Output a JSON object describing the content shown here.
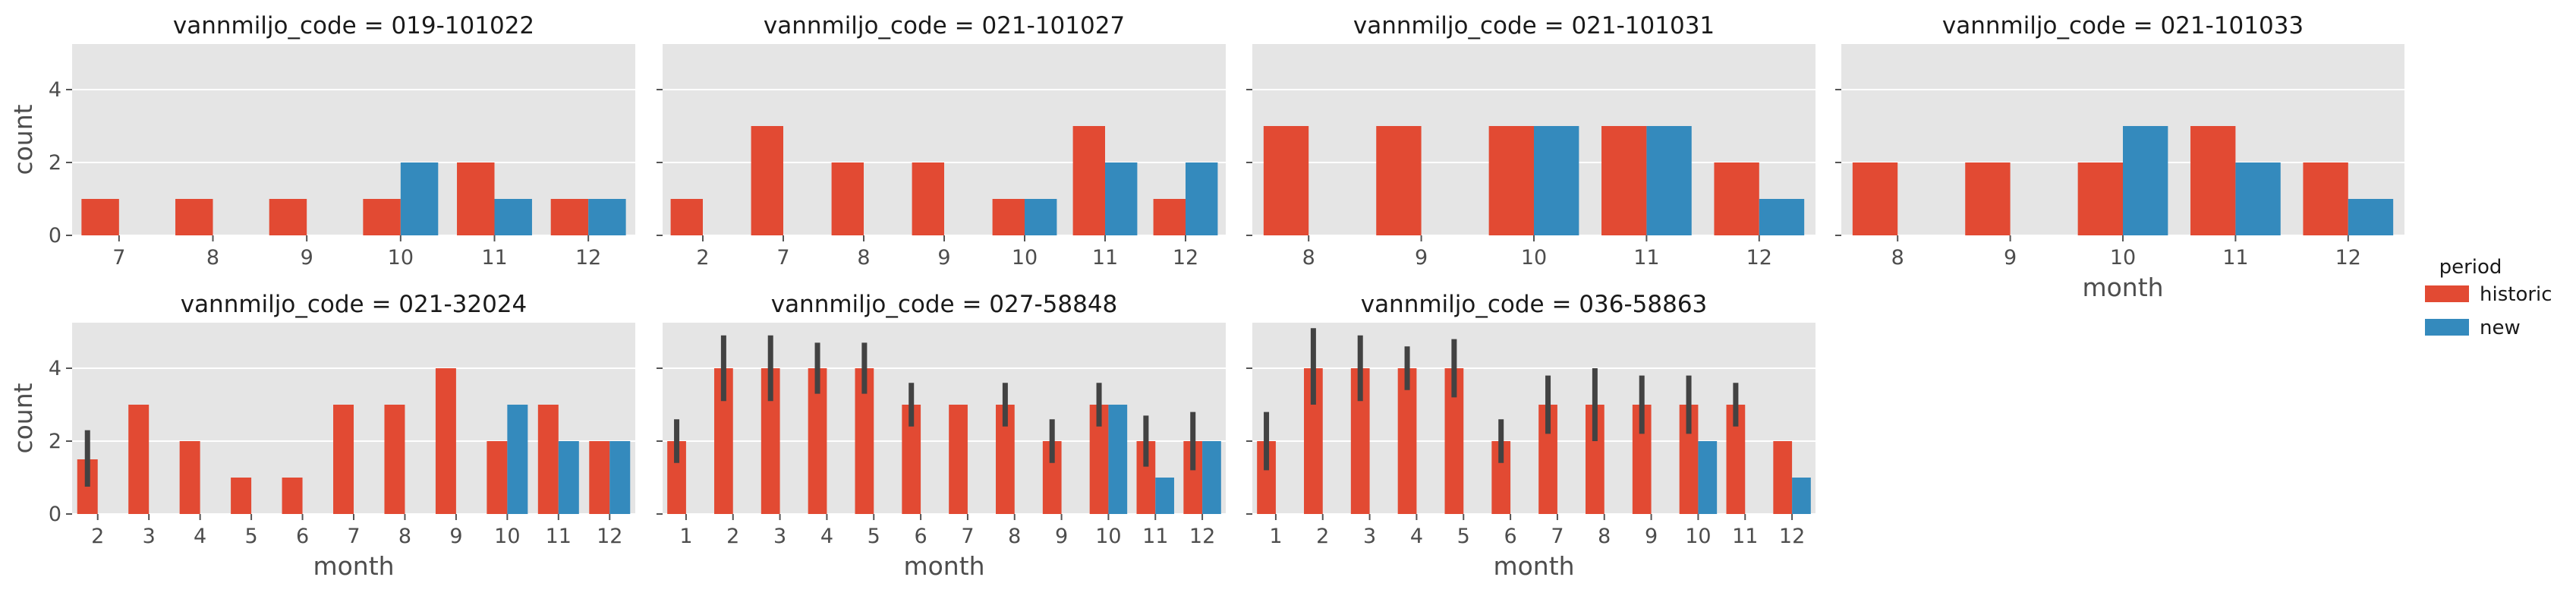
{
  "colors": {
    "historic": "#E24A33",
    "new": "#348ABD",
    "panel_bg": "#E5E5E5",
    "grid": "#FFFFFF",
    "errorbar": "#424242"
  },
  "legend": {
    "title": "period",
    "entries": [
      {
        "key": "historic",
        "label": "historic"
      },
      {
        "key": "new",
        "label": "new"
      }
    ]
  },
  "chart_data": [
    {
      "type": "bar",
      "title": "vannmiljo_code = 019-101022",
      "xlabel": "",
      "ylabel": "count",
      "ylim": [
        0,
        5.25
      ],
      "yticks": [
        0,
        2,
        4
      ],
      "grid": true,
      "categories": [
        "7",
        "8",
        "9",
        "10",
        "11",
        "12"
      ],
      "series": [
        {
          "name": "historic",
          "values": [
            1,
            1,
            1,
            1,
            2,
            1
          ],
          "err": [
            null,
            null,
            null,
            null,
            null,
            null
          ]
        },
        {
          "name": "new",
          "values": [
            null,
            null,
            null,
            2,
            1,
            1
          ],
          "err": [
            null,
            null,
            null,
            null,
            null,
            null
          ]
        }
      ]
    },
    {
      "type": "bar",
      "title": "vannmiljo_code = 021-101027",
      "xlabel": "",
      "ylabel": "",
      "ylim": [
        0,
        5.25
      ],
      "yticks": [
        0,
        2,
        4
      ],
      "grid": true,
      "categories": [
        "2",
        "7",
        "8",
        "9",
        "10",
        "11",
        "12"
      ],
      "series": [
        {
          "name": "historic",
          "values": [
            1,
            3,
            2,
            2,
            1,
            3,
            1
          ],
          "err": [
            null,
            null,
            null,
            null,
            null,
            null,
            null
          ]
        },
        {
          "name": "new",
          "values": [
            null,
            null,
            null,
            null,
            1,
            2,
            2
          ],
          "err": [
            null,
            null,
            null,
            null,
            null,
            null,
            null
          ]
        }
      ]
    },
    {
      "type": "bar",
      "title": "vannmiljo_code = 021-101031",
      "xlabel": "",
      "ylabel": "",
      "ylim": [
        0,
        5.25
      ],
      "yticks": [
        0,
        2,
        4
      ],
      "grid": true,
      "categories": [
        "8",
        "9",
        "10",
        "11",
        "12"
      ],
      "series": [
        {
          "name": "historic",
          "values": [
            3,
            3,
            3,
            3,
            2
          ],
          "err": [
            null,
            null,
            null,
            null,
            null
          ]
        },
        {
          "name": "new",
          "values": [
            null,
            null,
            3,
            3,
            1
          ],
          "err": [
            null,
            null,
            null,
            null,
            null
          ]
        }
      ]
    },
    {
      "type": "bar",
      "title": "vannmiljo_code = 021-101033",
      "xlabel": "month",
      "ylabel": "",
      "ylim": [
        0,
        5.25
      ],
      "yticks": [
        0,
        2,
        4
      ],
      "grid": true,
      "categories": [
        "8",
        "9",
        "10",
        "11",
        "12"
      ],
      "series": [
        {
          "name": "historic",
          "values": [
            2,
            2,
            2,
            3,
            2
          ],
          "err": [
            null,
            null,
            null,
            null,
            null
          ]
        },
        {
          "name": "new",
          "values": [
            null,
            null,
            3,
            2,
            1
          ],
          "err": [
            null,
            null,
            null,
            null,
            null
          ]
        }
      ]
    },
    {
      "type": "bar",
      "title": "vannmiljo_code = 021-32024",
      "xlabel": "month",
      "ylabel": "count",
      "ylim": [
        0,
        5.25
      ],
      "yticks": [
        0,
        2,
        4
      ],
      "grid": true,
      "categories": [
        "2",
        "3",
        "4",
        "5",
        "6",
        "7",
        "8",
        "9",
        "10",
        "11",
        "12"
      ],
      "series": [
        {
          "name": "historic",
          "values": [
            1.5,
            3,
            2,
            1,
            1,
            3,
            3,
            4,
            2,
            3,
            2
          ],
          "err": [
            [
              0.75,
              2.3
            ],
            null,
            null,
            null,
            null,
            null,
            null,
            null,
            null,
            null,
            null
          ]
        },
        {
          "name": "new",
          "values": [
            null,
            null,
            null,
            null,
            null,
            null,
            null,
            null,
            3,
            2,
            2
          ],
          "err": [
            null,
            null,
            null,
            null,
            null,
            null,
            null,
            null,
            null,
            null,
            null
          ]
        }
      ]
    },
    {
      "type": "bar",
      "title": "vannmiljo_code = 027-58848",
      "xlabel": "month",
      "ylabel": "",
      "ylim": [
        0,
        5.25
      ],
      "yticks": [
        0,
        2,
        4
      ],
      "grid": true,
      "categories": [
        "1",
        "2",
        "3",
        "4",
        "5",
        "6",
        "7",
        "8",
        "9",
        "10",
        "11",
        "12"
      ],
      "series": [
        {
          "name": "historic",
          "values": [
            2,
            4,
            4,
            4,
            4,
            3,
            3,
            3,
            2,
            3,
            2,
            2
          ],
          "err": [
            [
              1.4,
              2.6
            ],
            [
              3.1,
              4.9
            ],
            [
              3.1,
              4.9
            ],
            [
              3.3,
              4.7
            ],
            [
              3.3,
              4.7
            ],
            [
              2.4,
              3.6
            ],
            null,
            [
              2.4,
              3.6
            ],
            [
              1.4,
              2.6
            ],
            [
              2.4,
              3.6
            ],
            [
              1.3,
              2.7
            ],
            [
              1.2,
              2.8
            ]
          ]
        },
        {
          "name": "new",
          "values": [
            null,
            null,
            null,
            null,
            null,
            null,
            null,
            null,
            null,
            3,
            1,
            2
          ],
          "err": [
            null,
            null,
            null,
            null,
            null,
            null,
            null,
            null,
            null,
            null,
            null,
            null
          ]
        }
      ]
    },
    {
      "type": "bar",
      "title": "vannmiljo_code = 036-58863",
      "xlabel": "month",
      "ylabel": "",
      "ylim": [
        0,
        5.25
      ],
      "yticks": [
        0,
        2,
        4
      ],
      "grid": true,
      "categories": [
        "1",
        "2",
        "3",
        "4",
        "5",
        "6",
        "7",
        "8",
        "9",
        "10",
        "11",
        "12"
      ],
      "series": [
        {
          "name": "historic",
          "values": [
            2,
            4,
            4,
            4,
            4,
            2,
            3,
            3,
            3,
            3,
            3,
            2
          ],
          "err": [
            [
              1.2,
              2.8
            ],
            [
              3.0,
              5.1
            ],
            [
              3.1,
              4.9
            ],
            [
              3.4,
              4.6
            ],
            [
              3.2,
              4.8
            ],
            [
              1.4,
              2.6
            ],
            [
              2.2,
              3.8
            ],
            [
              2.0,
              4.0
            ],
            [
              2.2,
              3.8
            ],
            [
              2.2,
              3.8
            ],
            [
              2.4,
              3.6
            ],
            null
          ]
        },
        {
          "name": "new",
          "values": [
            null,
            null,
            null,
            null,
            null,
            null,
            null,
            null,
            null,
            2,
            null,
            1
          ],
          "err": [
            null,
            null,
            null,
            null,
            null,
            null,
            null,
            null,
            null,
            null,
            null,
            null
          ]
        }
      ]
    }
  ]
}
